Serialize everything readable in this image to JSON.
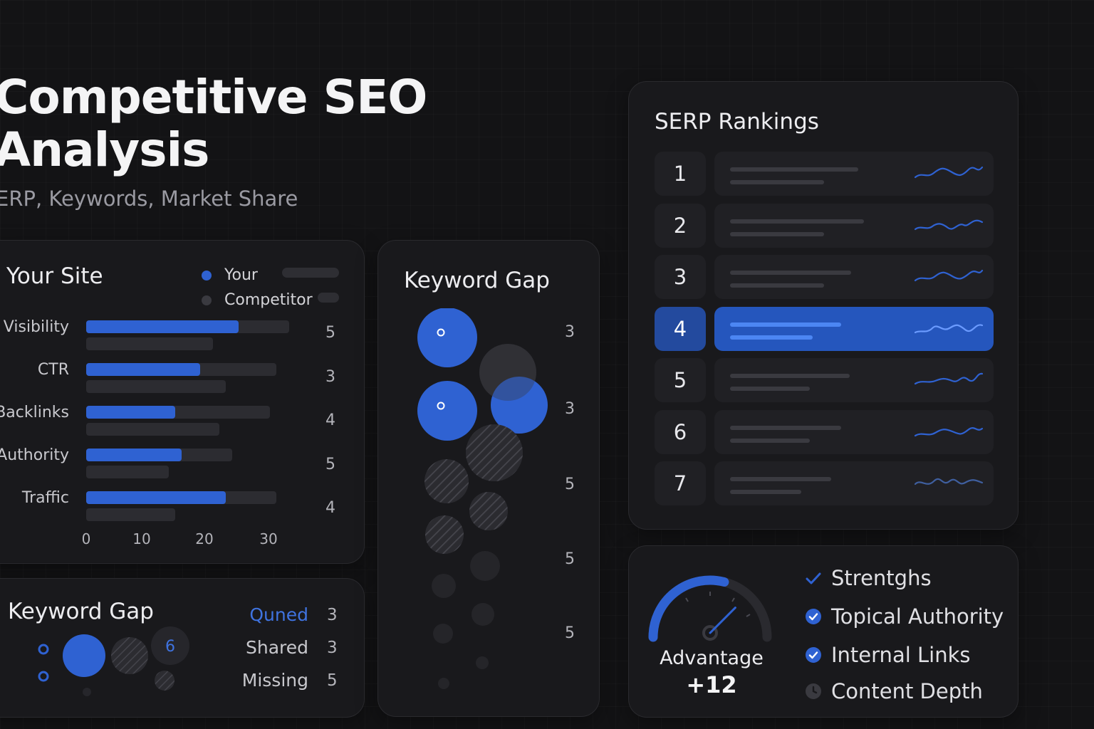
{
  "header": {
    "title": "Competitive SEO Analysis",
    "subtitle": "ERP, Keywords, Market Share"
  },
  "your_site": {
    "title": "Your Site",
    "legend": [
      {
        "label": "Your",
        "color": "#2f62d2"
      },
      {
        "label": "Competitor",
        "color": "#3a3a40"
      }
    ],
    "metrics": [
      {
        "label": "Visibility",
        "value": "5",
        "your": 24,
        "competitor": 20
      },
      {
        "label": "CTR",
        "value": "3",
        "your": 18,
        "competitor": 22
      },
      {
        "label": "Backlinks",
        "value": "4",
        "your": 14,
        "competitor": 21
      },
      {
        "label": "Authority",
        "value": "5",
        "your": 15,
        "competitor": 13
      },
      {
        "label": "Traffic",
        "value": "4",
        "your": 22,
        "competitor": 14
      }
    ],
    "ticks": [
      "0",
      "10",
      "20",
      "30"
    ]
  },
  "keyword_gap_small": {
    "title": "Keyword Gap",
    "bubble_label": "6",
    "rows": [
      {
        "label": "Quned",
        "value": "3",
        "highlight": true
      },
      {
        "label": "Shared",
        "value": "3",
        "highlight": false
      },
      {
        "label": "Missing",
        "value": "5",
        "highlight": false
      }
    ]
  },
  "keyword_gap_large": {
    "title": "Keyword Gap",
    "values": [
      "3",
      "3",
      "5",
      "5",
      "5"
    ]
  },
  "serp": {
    "title": "SERP Rankings",
    "ranks": [
      "1",
      "2",
      "3",
      "4",
      "5",
      "6",
      "7"
    ],
    "active_rank": "4"
  },
  "advantage": {
    "label": "Advantage",
    "value": "+12",
    "gauge_fraction": 0.58,
    "items": [
      {
        "label": "Strentghs",
        "icon": "check-icon"
      },
      {
        "label": "Topical Authority",
        "icon": "check-circle-icon"
      },
      {
        "label": "Internal Links",
        "icon": "check-circle-icon"
      },
      {
        "label": "Content Depth",
        "icon": "clock-icon"
      }
    ]
  },
  "colors": {
    "accent": "#2f62d2",
    "background": "#131315",
    "card": "#19191c"
  }
}
